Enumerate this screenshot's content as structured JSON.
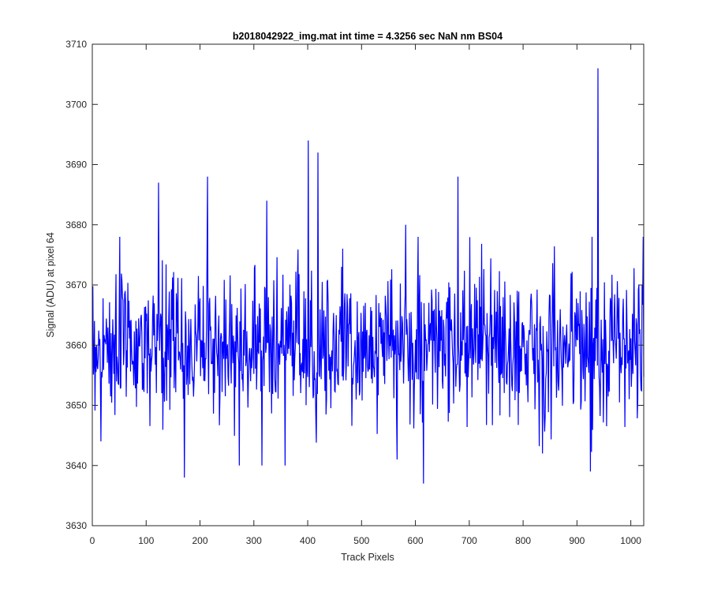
{
  "chart_data": {
    "type": "line",
    "title": "b2018042922_img.mat int time = 4.3256 sec  NaN nm BS04",
    "xlabel": "Track Pixels",
    "ylabel": "Signal (ADU) at pixel 64",
    "xlim": [
      0,
      1024
    ],
    "ylim": [
      3630,
      3710
    ],
    "xticks": [
      0,
      100,
      200,
      300,
      400,
      500,
      600,
      700,
      800,
      900,
      1000
    ],
    "yticks": [
      3630,
      3640,
      3650,
      3660,
      3670,
      3680,
      3690,
      3700,
      3710
    ],
    "grid": false,
    "legend": "none",
    "series_color": "#0000ff",
    "noise": {
      "n": 1024,
      "mean": 3660,
      "std": 6,
      "min": 3637,
      "max": 3706
    },
    "peaks": [
      {
        "x": 15,
        "y": 3644
      },
      {
        "x": 50,
        "y": 3678
      },
      {
        "x": 122,
        "y": 3687
      },
      {
        "x": 170,
        "y": 3638
      },
      {
        "x": 213,
        "y": 3688
      },
      {
        "x": 272,
        "y": 3640
      },
      {
        "x": 323,
        "y": 3684
      },
      {
        "x": 357,
        "y": 3640
      },
      {
        "x": 400,
        "y": 3694
      },
      {
        "x": 418,
        "y": 3692
      },
      {
        "x": 565,
        "y": 3641
      },
      {
        "x": 581,
        "y": 3680
      },
      {
        "x": 614,
        "y": 3637
      },
      {
        "x": 678,
        "y": 3688
      },
      {
        "x": 835,
        "y": 3642
      },
      {
        "x": 924,
        "y": 3639
      },
      {
        "x": 938,
        "y": 3706
      },
      {
        "x": 1022,
        "y": 3678
      }
    ]
  }
}
